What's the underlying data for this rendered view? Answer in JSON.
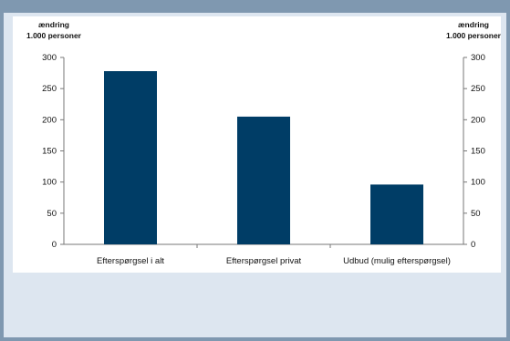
{
  "chart_data": {
    "type": "bar",
    "categories": [
      "Efterspørgsel i alt",
      "Efterspørgsel privat",
      "Udbud (mulig efterspørgsel)"
    ],
    "values": [
      278,
      205,
      96
    ],
    "y_axis_left_label": [
      "ændring",
      "1.000 personer"
    ],
    "y_axis_right_label": [
      "ændring",
      "1.000 personer"
    ],
    "ylim": [
      0,
      300
    ],
    "yticks": [
      0,
      50,
      100,
      150,
      200,
      250,
      300
    ],
    "bar_color": "#003d66",
    "grid": false,
    "legend": "none"
  }
}
